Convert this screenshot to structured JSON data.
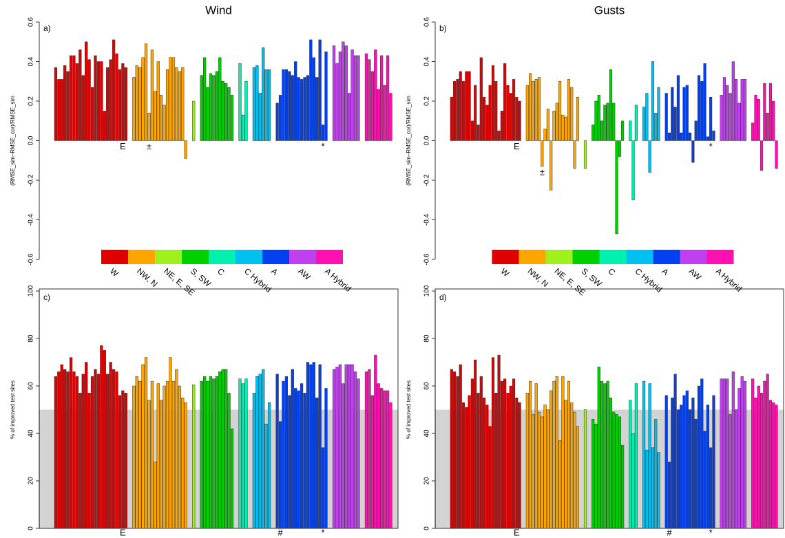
{
  "chart_data": [
    {
      "type": "bar",
      "title": "Wind",
      "panel": "a)",
      "ylabel": "(RMSE_sim–RMSE_cor)/RMSE_sim",
      "ylim": [
        -0.6,
        0.6
      ],
      "yticks": [
        -0.6,
        -0.4,
        -0.2,
        {
          "value": 0,
          "label": "0.0"
        },
        0.2,
        0.4,
        0.6
      ],
      "legend": true,
      "box": false,
      "series": [
        {
          "name": "W",
          "color": "#e00000",
          "values": [
            0.37,
            0.31,
            0.31,
            0.38,
            0.35,
            0.43,
            0.43,
            0.39,
            0.46,
            0.33,
            0.5,
            0.41,
            0.27,
            0.43,
            0.4,
            0.4,
            0.15,
            0.37,
            0.41,
            0.51,
            0.44,
            0.36,
            0.39,
            0.37
          ],
          "labels": [
            null,
            null,
            null,
            null,
            null,
            null,
            null,
            null,
            null,
            null,
            null,
            null,
            null,
            null,
            null,
            null,
            null,
            null,
            null,
            null,
            null,
            null,
            "E",
            null
          ]
        },
        {
          "name": "NW, N",
          "color": "#ffa500",
          "values": [
            0.32,
            0.38,
            0.37,
            0.42,
            0.49,
            0.14,
            0.46,
            0.25,
            0.4,
            0.23,
            0.18,
            0.36,
            0.42,
            0.42,
            0.37,
            0.35,
            0.37,
            -0.09
          ],
          "labels": [
            null,
            null,
            null,
            null,
            null,
            "±",
            null,
            null,
            null,
            null,
            null,
            null,
            null,
            null,
            null,
            null,
            null,
            null
          ]
        },
        {
          "name": "NE, E, SE",
          "color": "#a0f020",
          "values": [
            0.2
          ]
        },
        {
          "name": "S, SW",
          "color": "#00d000",
          "values": [
            0.33,
            0.42,
            0.27,
            0.34,
            0.33,
            0.35,
            0.42,
            0.3,
            0.29,
            0.27,
            0.23
          ]
        },
        {
          "name": "C",
          "color": "#00f0b0",
          "values": [
            0.39,
            0.13,
            0.3
          ]
        },
        {
          "name": "C Hybrid",
          "color": "#00c0f0",
          "values": [
            0.37,
            0.38,
            0.24,
            0.47,
            0.36,
            0.36
          ]
        },
        {
          "name": "A",
          "color": "#0040f0",
          "values": [
            0.19,
            0.23,
            0.36,
            0.36,
            0.35,
            0.33,
            0.4,
            0.32,
            0.31,
            0.32,
            0.33,
            0.51,
            0.42,
            0.32,
            0.51,
            0.08,
            0.45
          ],
          "labels": [
            null,
            null,
            null,
            null,
            null,
            null,
            null,
            null,
            null,
            null,
            null,
            null,
            null,
            null,
            null,
            "*",
            null
          ]
        },
        {
          "name": "AW",
          "color": "#c040f0",
          "values": [
            0.48,
            0.39,
            0.45,
            0.5,
            0.48,
            0.24,
            0.46,
            0.43,
            0.43
          ]
        },
        {
          "name": "A Hybrid",
          "color": "#ff10b0",
          "values": [
            0.44,
            0.41,
            0.35,
            0.46,
            0.26,
            0.43,
            0.28,
            0.43,
            0.24
          ]
        }
      ]
    },
    {
      "type": "bar",
      "title": "Gusts",
      "panel": "b)",
      "ylabel": "(RMSE_sim–RMSE_cor)/RMSE_sim",
      "ylim": [
        -0.6,
        0.6
      ],
      "yticks": [
        -0.6,
        -0.4,
        -0.2,
        {
          "value": 0,
          "label": "0.0"
        },
        0.2,
        0.4,
        0.6
      ],
      "legend": true,
      "box": false,
      "series": [
        {
          "name": "W",
          "color": "#e00000",
          "values": [
            0.22,
            0.3,
            0.31,
            0.35,
            0.3,
            0.35,
            0.35,
            0.1,
            0.28,
            0.08,
            0.42,
            0.22,
            0.18,
            0.28,
            0.38,
            0.3,
            0.05,
            0.15,
            0.39,
            0.28,
            0.24,
            0.31,
            0.22,
            0.2
          ],
          "labels": [
            null,
            null,
            null,
            null,
            null,
            null,
            null,
            null,
            null,
            null,
            null,
            null,
            null,
            null,
            null,
            null,
            null,
            null,
            null,
            null,
            null,
            null,
            "E",
            null
          ]
        },
        {
          "name": "NW, N",
          "color": "#ffa500",
          "values": [
            0.28,
            0.34,
            0.3,
            0.31,
            0.32,
            -0.13,
            0.06,
            0.16,
            -0.25,
            0.15,
            0.19,
            0.3,
            0.13,
            0.12,
            0.31,
            0.27,
            -0.14,
            0.22
          ],
          "labels": [
            null,
            null,
            null,
            null,
            null,
            "±",
            null,
            null,
            null,
            null,
            null,
            null,
            null,
            null,
            null,
            null,
            null,
            null
          ]
        },
        {
          "name": "NE, E, SE",
          "color": "#a0f020",
          "values": [
            -0.14
          ]
        },
        {
          "name": "S, SW",
          "color": "#00d000",
          "values": [
            0.08,
            0.2,
            0.23,
            0.1,
            0.18,
            0.19,
            0.36,
            0.19,
            -0.47,
            -0.08,
            0.1
          ]
        },
        {
          "name": "C",
          "color": "#00f0b0",
          "values": [
            0.1,
            -0.3,
            0.18
          ]
        },
        {
          "name": "C Hybrid",
          "color": "#00c0f0",
          "values": [
            0.17,
            0.24,
            -0.16,
            0.4,
            0.14,
            0.27
          ]
        },
        {
          "name": "A",
          "color": "#0040f0",
          "values": [
            0.24,
            0.04,
            0.27,
            0.17,
            0.33,
            0.04,
            0.27,
            0.28,
            0.04,
            -0.11,
            0.1,
            0.33,
            0.3,
            0.39,
            0.02,
            0.22,
            0.05
          ],
          "labels": [
            null,
            null,
            null,
            null,
            null,
            null,
            null,
            null,
            null,
            null,
            null,
            null,
            null,
            null,
            null,
            "*",
            null
          ]
        },
        {
          "name": "AW",
          "color": "#c040f0",
          "values": [
            0.23,
            0.32,
            0.28,
            0.24,
            0.4,
            0.31,
            0.19,
            0.31,
            0.31
          ]
        },
        {
          "name": "A Hybrid",
          "color": "#ff10b0",
          "values": [
            0.09,
            0.23,
            0.21,
            -0.15,
            0.29,
            0.14,
            0.29,
            0.2,
            -0.14
          ]
        }
      ]
    },
    {
      "type": "bar",
      "panel": "c)",
      "ylabel": "% of improved test sites",
      "ylim": [
        0,
        100
      ],
      "yticks": [
        0,
        20,
        40,
        60,
        80,
        100
      ],
      "legend": false,
      "box": true,
      "shade_below": 50,
      "series": [
        {
          "color": "#e00000",
          "values": [
            64,
            66,
            69,
            67,
            66,
            72,
            66,
            64,
            57,
            65,
            70,
            57,
            64,
            67,
            65,
            77,
            75,
            65,
            70,
            67,
            66,
            56,
            58,
            57
          ],
          "labels": [
            null,
            null,
            null,
            null,
            null,
            null,
            null,
            null,
            null,
            null,
            null,
            null,
            null,
            null,
            null,
            null,
            null,
            null,
            null,
            null,
            null,
            null,
            "E",
            null
          ]
        },
        {
          "color": "#ffa500",
          "values": [
            60,
            64,
            62,
            69,
            72,
            54,
            62,
            28,
            61,
            54,
            60,
            62,
            72,
            62,
            67,
            60,
            55,
            53
          ]
        },
        {
          "color": "#a0f020",
          "values": [
            60.5
          ]
        },
        {
          "color": "#00d000",
          "values": [
            62,
            64,
            62,
            64,
            63,
            64,
            66,
            67,
            67,
            57,
            42
          ]
        },
        {
          "color": "#00f0b0",
          "values": [
            63,
            61,
            63
          ]
        },
        {
          "color": "#00c0f0",
          "values": [
            57,
            64,
            65,
            67,
            44,
            53
          ]
        },
        {
          "color": "#0040f0",
          "values": [
            65,
            45,
            62,
            64,
            56,
            67,
            59,
            58,
            61,
            57,
            70,
            69,
            70,
            55,
            69,
            34,
            59
          ],
          "labels": [
            null,
            "#",
            null,
            null,
            null,
            null,
            null,
            null,
            null,
            null,
            null,
            null,
            null,
            null,
            null,
            "*",
            null
          ]
        },
        {
          "color": "#c040f0",
          "values": [
            67,
            68,
            69,
            61,
            69,
            69,
            69,
            66,
            63
          ]
        },
        {
          "color": "#ff10b0",
          "values": [
            66,
            67,
            56,
            73,
            61,
            59,
            58,
            58,
            53
          ]
        }
      ]
    },
    {
      "type": "bar",
      "panel": "d)",
      "ylabel": "% of improved test sites",
      "ylim": [
        0,
        100
      ],
      "yticks": [
        0,
        20,
        40,
        60,
        80,
        100
      ],
      "legend": false,
      "box": true,
      "shade_below": 50,
      "series": [
        {
          "color": "#e00000",
          "values": [
            67,
            66,
            64,
            69,
            53,
            51,
            56,
            63,
            71,
            57,
            64,
            55,
            52,
            43,
            72,
            57,
            73,
            62,
            63,
            57,
            60,
            63,
            55,
            53
          ],
          "labels": [
            null,
            null,
            null,
            null,
            null,
            null,
            null,
            null,
            null,
            null,
            null,
            null,
            null,
            null,
            null,
            null,
            null,
            null,
            null,
            null,
            null,
            null,
            "E",
            null
          ]
        },
        {
          "color": "#ffa500",
          "values": [
            57,
            62,
            48,
            61,
            49,
            47,
            52,
            50,
            58,
            62,
            64,
            37,
            64,
            54,
            62,
            53,
            49,
            43
          ]
        },
        {
          "color": "#a0f020",
          "values": [
            50
          ]
        },
        {
          "color": "#00d000",
          "values": [
            46,
            44,
            68,
            62,
            61,
            62,
            55,
            49,
            48,
            47,
            35
          ]
        },
        {
          "color": "#00f0b0",
          "values": [
            54,
            40,
            61
          ]
        },
        {
          "color": "#00c0f0",
          "values": [
            62,
            33,
            61,
            34,
            46,
            32
          ]
        },
        {
          "color": "#0040f0",
          "values": [
            56,
            28,
            55,
            65,
            50,
            52,
            56,
            58,
            50,
            55,
            46,
            60,
            63,
            41,
            52,
            34,
            56
          ],
          "labels": [
            null,
            "#",
            null,
            null,
            null,
            null,
            null,
            null,
            null,
            null,
            null,
            null,
            null,
            null,
            null,
            "*",
            null
          ]
        },
        {
          "color": "#c040f0",
          "values": [
            63,
            63,
            63,
            48,
            66,
            50,
            59,
            64,
            62
          ]
        },
        {
          "color": "#ff10b0",
          "values": [
            63,
            55,
            60,
            57,
            62,
            65,
            54,
            53,
            52
          ]
        }
      ]
    }
  ]
}
